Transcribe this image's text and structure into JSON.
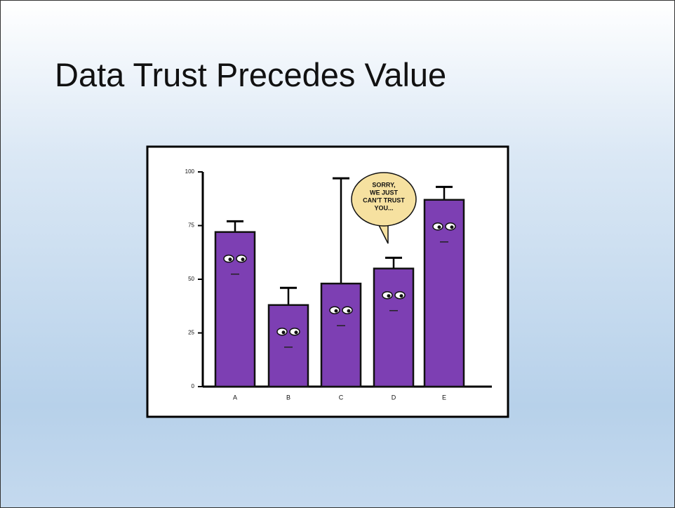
{
  "slide_title": "Data Trust Precedes Value",
  "chart_data": {
    "type": "bar",
    "categories": [
      "A",
      "B",
      "C",
      "D",
      "E"
    ],
    "values": [
      72,
      38,
      48,
      55,
      87
    ],
    "errors": [
      5,
      8,
      49,
      5,
      6
    ],
    "color": "#7d3fb3",
    "ylim": [
      0,
      100
    ],
    "yticks": [
      0,
      25,
      50,
      75,
      100
    ],
    "annotation": [
      "SORRY,",
      "WE JUST",
      "CAN'T TRUST",
      "YOU..."
    ]
  }
}
